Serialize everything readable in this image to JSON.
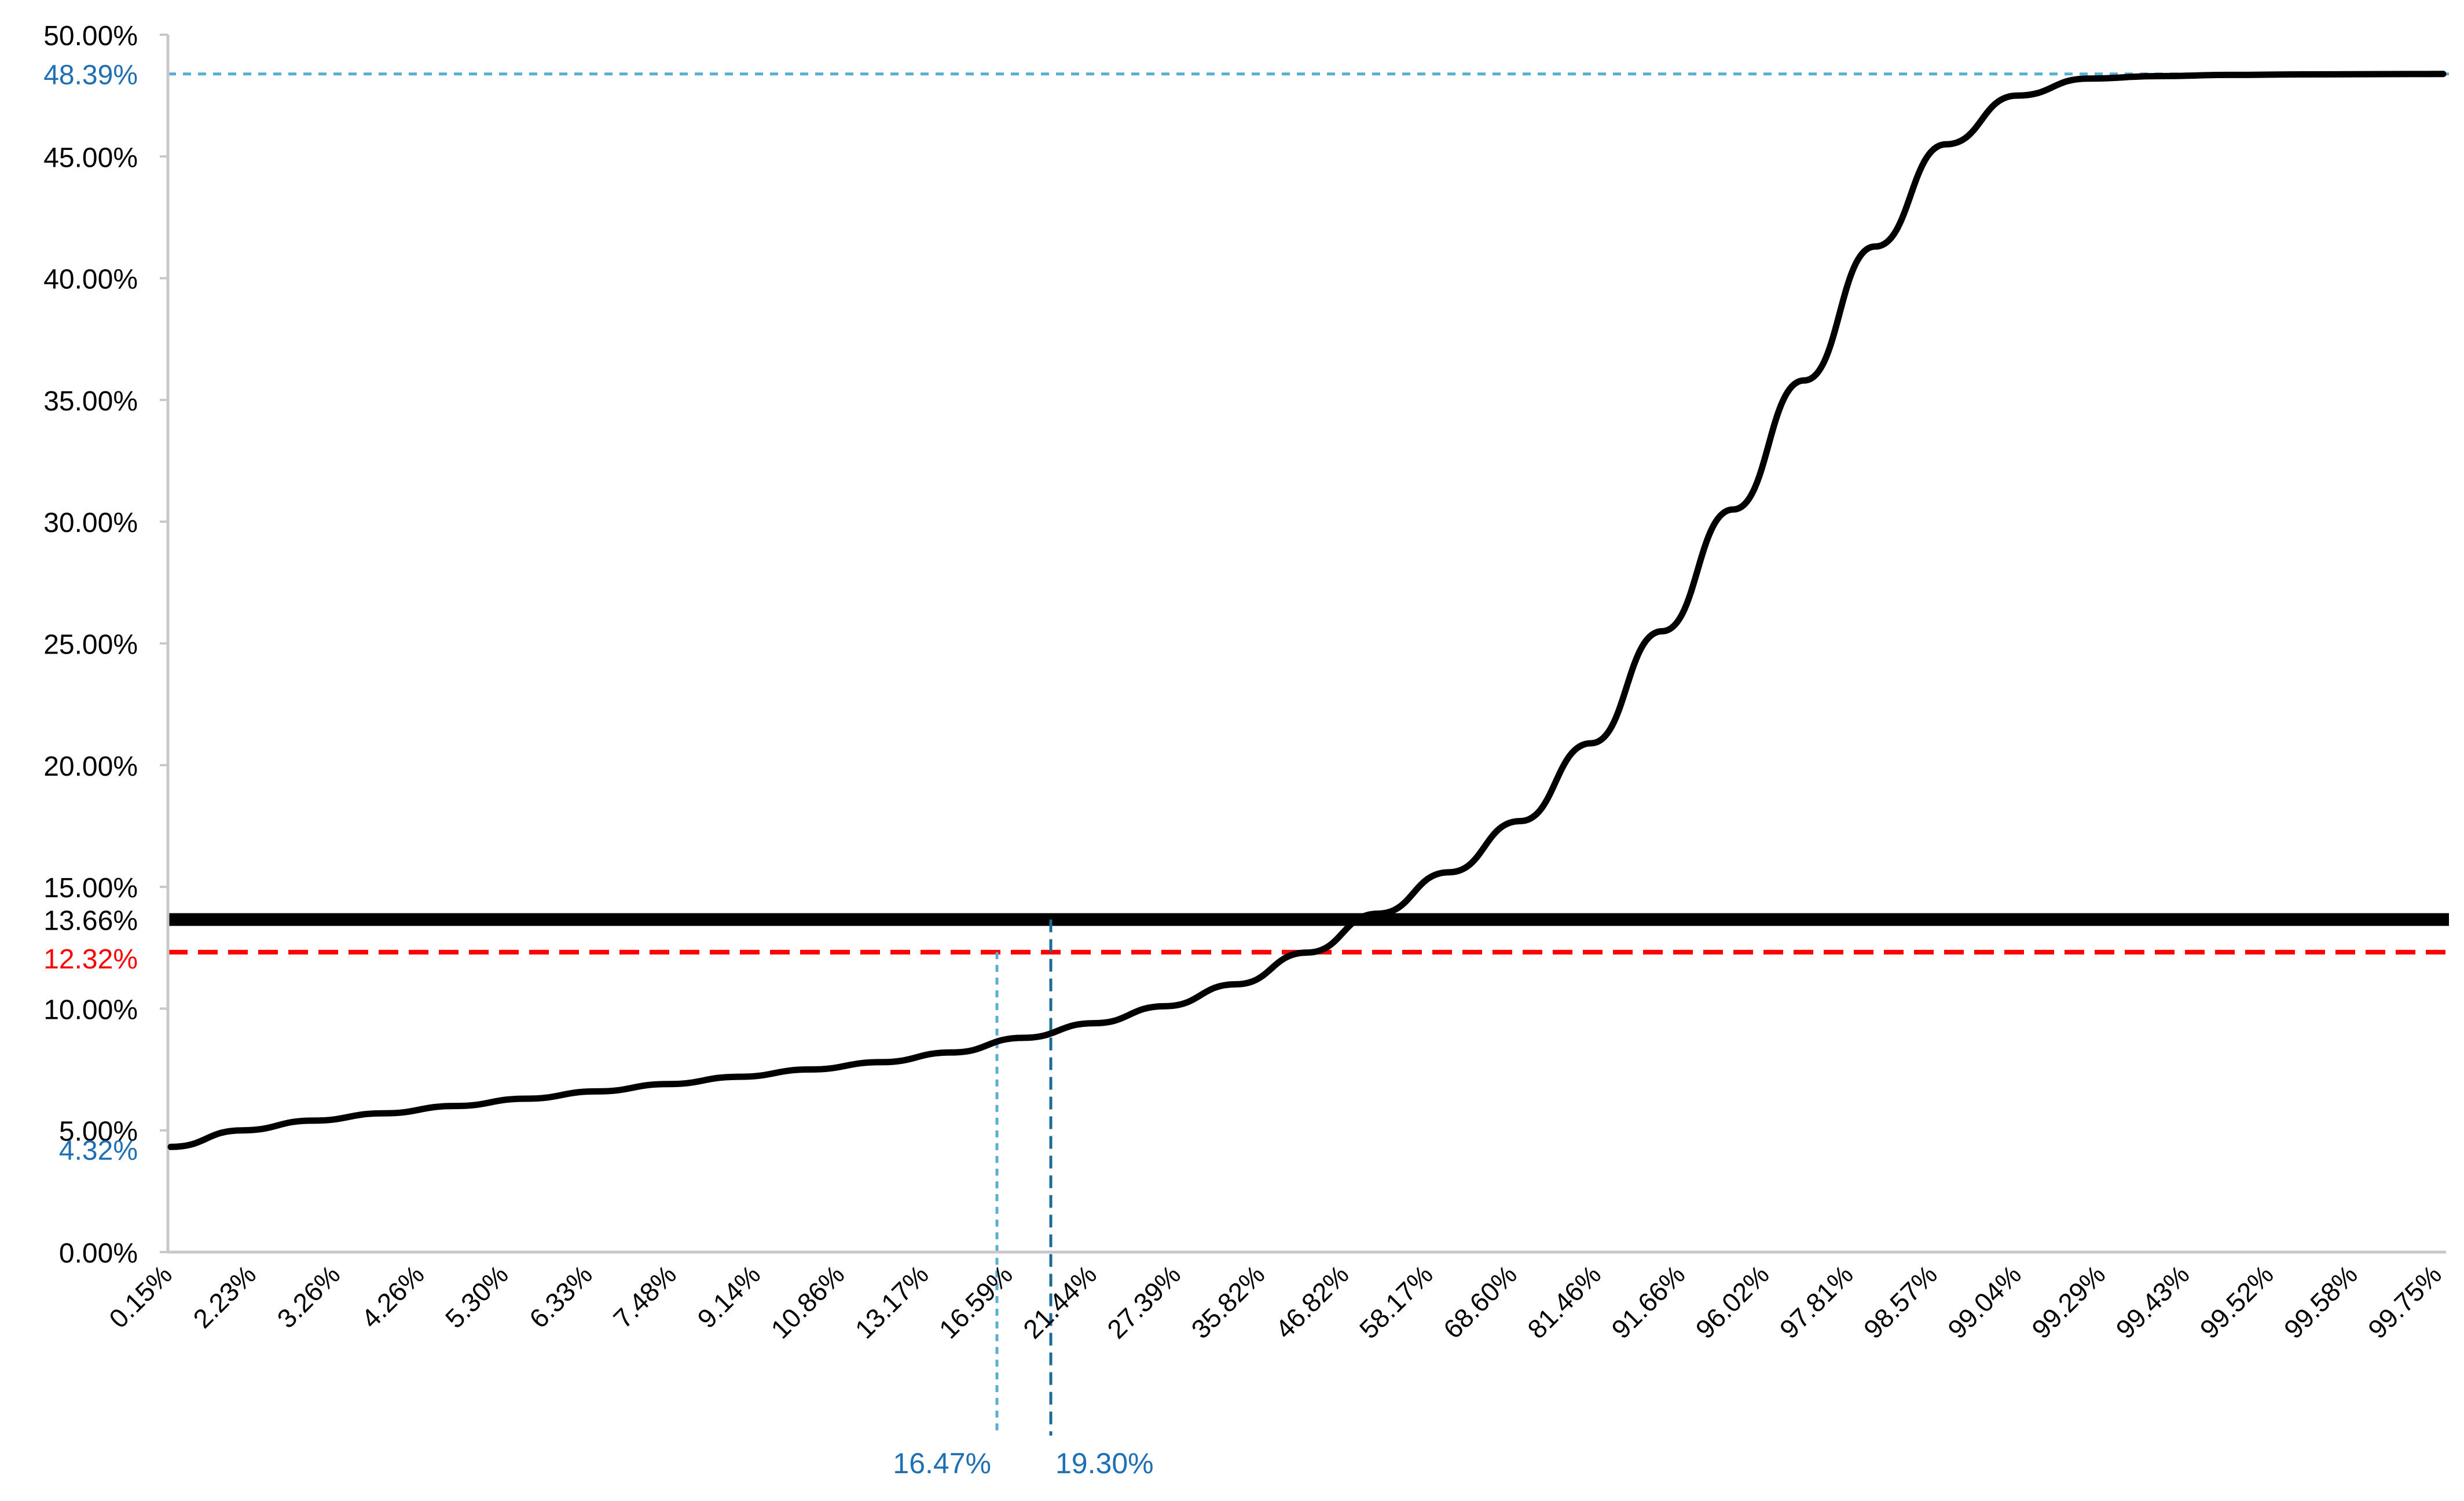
{
  "chart_data": {
    "type": "line",
    "title": "",
    "xlabel": "",
    "ylabel": "",
    "ylim": [
      0,
      50
    ],
    "grid": false,
    "legend": "none",
    "y_ticks": [
      "0.00%",
      "5.00%",
      "10.00%",
      "15.00%",
      "20.00%",
      "25.00%",
      "30.00%",
      "35.00%",
      "40.00%",
      "45.00%",
      "50.00%"
    ],
    "y_tick_values": [
      0,
      5,
      10,
      15,
      20,
      25,
      30,
      35,
      40,
      45,
      50
    ],
    "x_ticks": [
      "0.15%",
      "2.23%",
      "3.26%",
      "4.26%",
      "5.30%",
      "6.33%",
      "7.48%",
      "9.14%",
      "10.86%",
      "13.17%",
      "16.59%",
      "21.44%",
      "27.39%",
      "35.82%",
      "46.82%",
      "58.17%",
      "68.60%",
      "81.46%",
      "91.66%",
      "96.02%",
      "97.81%",
      "98.57%",
      "99.04%",
      "99.29%",
      "99.43%",
      "99.52%",
      "99.58%",
      "99.75%"
    ],
    "series": [
      {
        "color": "#000000",
        "y": [
          4.32,
          5.0,
          5.4,
          5.7,
          6.0,
          6.3,
          6.6,
          6.9,
          7.2,
          7.5,
          7.8,
          8.2,
          8.8,
          9.4,
          10.1,
          11.0,
          12.3,
          13.9,
          15.6,
          17.7,
          20.9,
          25.5,
          30.5,
          35.8,
          41.3,
          45.5,
          47.5,
          48.2,
          48.3,
          48.35,
          48.37,
          48.38,
          48.39
        ]
      }
    ],
    "reference_lines": [
      {
        "type": "horizontal",
        "value": 13.66,
        "label": "13.66%",
        "color": "#000000",
        "style": "solid"
      },
      {
        "type": "horizontal",
        "value": 12.32,
        "label": "12.32%",
        "color": "#ff0000",
        "style": "dashed"
      },
      {
        "type": "horizontal",
        "value": 48.39,
        "label": "48.39%",
        "color": "#5aaed6",
        "style": "dotted"
      }
    ],
    "vertical_markers": [
      {
        "label": "16.47%",
        "color": "#5aaed6",
        "style": "dotted",
        "y_value": 12.32
      },
      {
        "label": "19.30%",
        "color": "#1a6a9a",
        "style": "dashed",
        "y_value": 13.66
      }
    ],
    "annotations": [
      {
        "label": "4.32%",
        "color": "#1f77b4",
        "y_value": 4.32
      }
    ],
    "colors": {
      "curve": "#000000",
      "axis": "#c8c8c8",
      "tick_text": "#000000",
      "blue_label": "#1f6fb4",
      "red": "#ff0000",
      "light_blue": "#5aaed6"
    }
  }
}
